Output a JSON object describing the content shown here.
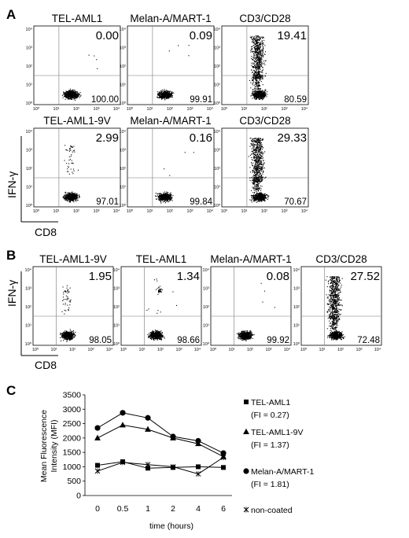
{
  "figure": {
    "panel_labels": {
      "a": "A",
      "b": "B",
      "c": "C"
    },
    "axis_labels": {
      "y": "IFN-γ",
      "x": "CD8"
    },
    "log_ticks": [
      "10⁰",
      "10¹",
      "10²",
      "10³",
      "10⁴"
    ]
  },
  "flow_panel_a": [
    {
      "title": "TEL-AML1",
      "upper_right": "0.00",
      "lower_right": "100.00",
      "pattern": "none"
    },
    {
      "title": "Melan-A/MART-1",
      "upper_right": "0.09",
      "lower_right": "99.91",
      "pattern": "none"
    },
    {
      "title": "CD3/CD28",
      "upper_right": "19.41",
      "lower_right": "80.59",
      "pattern": "stim"
    },
    {
      "title": "TEL-AML1-9V",
      "upper_right": "2.99",
      "lower_right": "97.01",
      "pattern": "specific"
    },
    {
      "title": "Melan-A/MART-1",
      "upper_right": "0.16",
      "lower_right": "99.84",
      "pattern": "none"
    },
    {
      "title": "CD3/CD28",
      "upper_right": "29.33",
      "lower_right": "70.67",
      "pattern": "stim"
    }
  ],
  "flow_panel_b": [
    {
      "title": "TEL-AML1-9V",
      "upper_right": "1.95",
      "lower_right": "98.05",
      "pattern": "specific"
    },
    {
      "title": "TEL-AML1",
      "upper_right": "1.34",
      "lower_right": "98.66",
      "pattern": "cluster"
    },
    {
      "title": "Melan-A/MART-1",
      "upper_right": "0.08",
      "lower_right": "99.92",
      "pattern": "none"
    },
    {
      "title": "CD3/CD28",
      "upper_right": "27.52",
      "lower_right": "72.48",
      "pattern": "stim"
    }
  ],
  "chart_data": {
    "type": "line",
    "title": "",
    "xlabel": "time (hours)",
    "ylabel": "Mean Fluorescence Intensity (MFI)",
    "categories": [
      "0",
      "0.5",
      "1",
      "2",
      "4",
      "6"
    ],
    "ylim": [
      0,
      3500
    ],
    "yticks": [
      "0",
      "500",
      "1000",
      "1500",
      "2000",
      "2500",
      "3000",
      "3500"
    ],
    "series": [
      {
        "name": "TEL-AML1",
        "note": "(FI = 0.27)",
        "marker": "square",
        "values": [
          1050,
          1175,
          950,
          975,
          1000,
          975
        ]
      },
      {
        "name": "TEL-AML1-9V",
        "note": "(FI = 1.37)",
        "marker": "triangle",
        "values": [
          2000,
          2450,
          2300,
          2000,
          1800,
          1350
        ]
      },
      {
        "name": "Melan-A/MART-1",
        "note": "(FI = 1.81)",
        "marker": "circle",
        "values": [
          2350,
          2875,
          2700,
          2050,
          1900,
          1475
        ]
      },
      {
        "name": "non-coated",
        "note": "",
        "marker": "star",
        "values": [
          850,
          1150,
          1075,
          1000,
          750,
          1325
        ]
      }
    ]
  }
}
